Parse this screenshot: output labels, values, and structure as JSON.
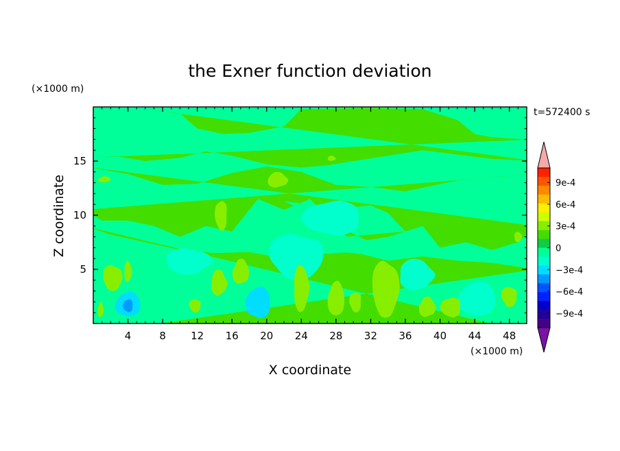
{
  "chart_data": {
    "type": "heatmap",
    "title": "the Exner function deviation",
    "time_label": "t=572400 s",
    "xlabel": "X coordinate",
    "ylabel": "Z coordinate",
    "x_unit": "(×1000 m)",
    "y_unit": "(×1000 m)",
    "xlim": [
      0,
      50
    ],
    "ylim": [
      0,
      20
    ],
    "x_ticks": [
      4,
      8,
      12,
      16,
      20,
      24,
      28,
      32,
      36,
      40,
      44,
      48
    ],
    "y_ticks": [
      5,
      10,
      15
    ],
    "colorbar": {
      "min": -0.0011,
      "max": 0.0011,
      "step": 0.0001,
      "labels": [
        "9e-4",
        "6e-4",
        "3e-4",
        "0",
        "−3e-4",
        "−6e-4",
        "−9e-4"
      ],
      "label_values": [
        0.0009,
        0.0006,
        0.0003,
        0,
        -0.0003,
        -0.0006,
        -0.0009
      ],
      "colors": [
        "#ff2200",
        "#ff5500",
        "#ff8800",
        "#ffbb00",
        "#ffee00",
        "#ccff00",
        "#88ee00",
        "#44dd00",
        "#11cc44",
        "#00ff99",
        "#00ffcc",
        "#00ddff",
        "#0099ff",
        "#0055ff",
        "#0022ff",
        "#0000cc",
        "#220099",
        "#440088"
      ],
      "over_color": "#f7a8a8",
      "under_color": "#7a12a8"
    },
    "field_colors": {
      "band_positive": "#44dd00",
      "band_near_zero": "#00ff99",
      "weak_positive": "#88ee00",
      "weak_negative": "#00ffcc",
      "moderate_negative": "#00ddff",
      "strong_negative": "#0099ff"
    },
    "regions": [
      {
        "level": "weak_positive",
        "x": [
          1.0,
          3.5
        ],
        "z": [
          3.0,
          5.5
        ]
      },
      {
        "level": "weak_positive",
        "x": [
          3.5,
          4.5
        ],
        "z": [
          3.8,
          5.8
        ]
      },
      {
        "level": "weak_positive",
        "x": [
          0.5,
          1.2
        ],
        "z": [
          0.5,
          2.0
        ]
      },
      {
        "level": "moderate_negative",
        "x": [
          2.5,
          5.5
        ],
        "z": [
          0.5,
          3.0
        ]
      },
      {
        "level": "strong_negative",
        "x": [
          3.4,
          4.6
        ],
        "z": [
          1.0,
          2.3
        ]
      },
      {
        "level": "weak_positive",
        "x": [
          11.0,
          12.5
        ],
        "z": [
          1.0,
          2.3
        ]
      },
      {
        "level": "weak_negative",
        "x": [
          8.0,
          14.0
        ],
        "z": [
          4.5,
          7.0
        ]
      },
      {
        "level": "weak_positive",
        "x": [
          13.5,
          15.5
        ],
        "z": [
          2.5,
          5.0
        ]
      },
      {
        "level": "weak_positive",
        "x": [
          16.0,
          18.0
        ],
        "z": [
          3.5,
          6.0
        ]
      },
      {
        "level": "moderate_negative",
        "x": [
          17.5,
          20.5
        ],
        "z": [
          0.3,
          3.5
        ]
      },
      {
        "level": "weak_positive",
        "x": [
          14.0,
          15.5
        ],
        "z": [
          8.5,
          11.5
        ]
      },
      {
        "level": "weak_negative",
        "x": [
          20.0,
          27.0
        ],
        "z": [
          4.0,
          8.5
        ]
      },
      {
        "level": "weak_positive",
        "x": [
          23.0,
          25.0
        ],
        "z": [
          1.0,
          5.5
        ]
      },
      {
        "level": "weak_positive",
        "x": [
          20.0,
          22.5
        ],
        "z": [
          12.5,
          14.0
        ]
      },
      {
        "level": "weak_positive",
        "x": [
          27.0,
          29.0
        ],
        "z": [
          0.5,
          4.0
        ]
      },
      {
        "level": "weak_negative",
        "x": [
          24.0,
          31.0
        ],
        "z": [
          8.0,
          11.5
        ]
      },
      {
        "level": "weak_positive",
        "x": [
          29.5,
          31.0
        ],
        "z": [
          1.0,
          3.0
        ]
      },
      {
        "level": "weak_positive",
        "x": [
          32.0,
          35.5
        ],
        "z": [
          0.5,
          6.0
        ]
      },
      {
        "level": "weak_negative",
        "x": [
          35.0,
          39.5
        ],
        "z": [
          3.0,
          6.0
        ]
      },
      {
        "level": "weak_positive",
        "x": [
          37.5,
          39.5
        ],
        "z": [
          0.5,
          2.5
        ]
      },
      {
        "level": "weak_negative",
        "x": [
          42.0,
          46.5
        ],
        "z": [
          0.5,
          4.0
        ]
      },
      {
        "level": "weak_positive",
        "x": [
          40.0,
          42.5
        ],
        "z": [
          0.5,
          2.5
        ]
      },
      {
        "level": "weak_positive",
        "x": [
          47.0,
          49.0
        ],
        "z": [
          1.5,
          3.5
        ]
      },
      {
        "level": "weak_positive",
        "x": [
          48.5,
          49.5
        ],
        "z": [
          7.5,
          8.5
        ]
      },
      {
        "level": "weak_positive",
        "x": [
          27.0,
          28.0
        ],
        "z": [
          15.0,
          15.5
        ]
      },
      {
        "level": "weak_positive",
        "x": [
          0.5,
          2.0
        ],
        "z": [
          13.0,
          13.6
        ]
      }
    ]
  }
}
